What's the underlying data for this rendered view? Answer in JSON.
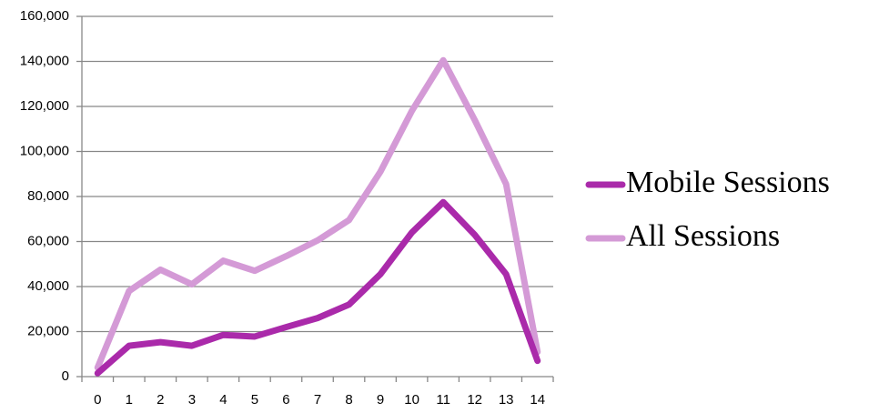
{
  "chart_data": {
    "type": "line",
    "categories": [
      "0",
      "1",
      "2",
      "3",
      "4",
      "5",
      "6",
      "7",
      "8",
      "9",
      "10",
      "11",
      "12",
      "13",
      "14"
    ],
    "series": [
      {
        "name": "Mobile Sessions",
        "color": "#aa2aaa",
        "values": [
          1500,
          13700,
          15300,
          13700,
          18500,
          17800,
          22000,
          26000,
          32000,
          45500,
          64000,
          77500,
          63000,
          45500,
          7000
        ]
      },
      {
        "name": "All Sessions",
        "color": "#d49ad6",
        "values": [
          4000,
          38000,
          47500,
          41000,
          51500,
          47000,
          53500,
          60500,
          69500,
          91000,
          118000,
          140500,
          114000,
          85500,
          11000
        ]
      }
    ],
    "ylim": [
      0,
      160000
    ],
    "yticks": [
      0,
      {
        "value": 20000,
        "label": "20,000"
      },
      {
        "value": 40000,
        "label": "40,000"
      },
      {
        "value": 60000,
        "label": "60,000"
      },
      {
        "value": 80000,
        "label": "80,000"
      },
      {
        "value": 100000,
        "label": "100,000"
      },
      {
        "value": 120000,
        "label": "120,000"
      },
      {
        "value": 140000,
        "label": "140,000"
      },
      {
        "value": 160000,
        "label": "160,000"
      }
    ],
    "grid": true,
    "legend": "right"
  }
}
